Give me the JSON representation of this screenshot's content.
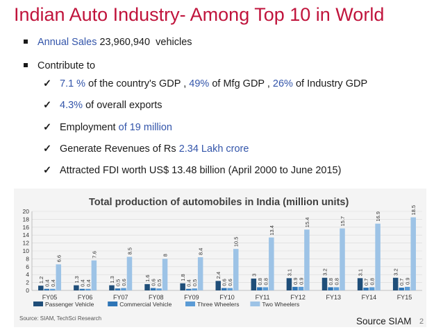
{
  "slide": {
    "title": "Indian Auto Industry- Among Top 10 in World",
    "bullets": {
      "b1": {
        "label": "Annual Sales",
        "value": "23,960,940",
        "unit": "vehicles"
      },
      "b2": {
        "text": "Contribute to"
      }
    },
    "checks": {
      "c1": {
        "v1": "7.1 %",
        "t1": "of the country's GDP ,",
        "v2": "49%",
        "t2": "of Mfg  GDP ,",
        "v3": "26%",
        "t3": "of Industry GDP"
      },
      "c2": {
        "v1": "4.3%",
        "t1": "of overall exports"
      },
      "c3": {
        "t1": "Employment",
        "v1": "of  19 million"
      },
      "c4": {
        "t1": "Generate Revenues of Rs",
        "v1": "2.34 Lakh crore"
      },
      "c5": {
        "t1": "Attracted FDI worth US$ 13.48 billion (April 2000 to June 2015)"
      }
    },
    "source": "Source SIAM",
    "page_number": "2"
  },
  "chart_data": {
    "type": "bar",
    "title": "Total production of automobiles in India (million units)",
    "categories": [
      "FY05",
      "FY06",
      "FY07",
      "FY08",
      "FY09",
      "FY10",
      "FY11",
      "FY12",
      "FY13",
      "FY14",
      "FY15"
    ],
    "series": [
      {
        "name": "Passenger Vehicle",
        "color": "#1f4e79",
        "values": [
          1.2,
          1.3,
          1.3,
          1.6,
          1.8,
          2.4,
          3,
          3.1,
          3.2,
          3.1,
          3.2
        ],
        "labels": [
          "1.2",
          "1.3",
          "1.3",
          "1.6",
          "1.8",
          "2.4",
          "3",
          "3.1",
          "3.2",
          "3.1",
          "3.2"
        ]
      },
      {
        "name": "Commercial Vehicle",
        "color": "#2e75b6",
        "values": [
          0.4,
          0.4,
          0.5,
          0.6,
          0.4,
          0.6,
          0.8,
          0.9,
          0.8,
          0.7,
          0.7
        ],
        "labels": [
          "0.4",
          "0.4",
          "0.5",
          "0.6",
          "0.4",
          "0.6",
          "0.8",
          "0.9",
          "0.8",
          "0.7",
          "0.7"
        ]
      },
      {
        "name": "Three Wheelers",
        "color": "#5b9bd5",
        "values": [
          0.4,
          0.4,
          0.6,
          0.5,
          0.5,
          0.6,
          0.8,
          0.9,
          0.8,
          0.8,
          0.9
        ],
        "labels": [
          "0.4",
          "0.4",
          "0.6",
          "0.5",
          "0.5",
          "0.6",
          "0.8",
          "0.9",
          "0.8",
          "0.8",
          "0.9"
        ]
      },
      {
        "name": "Two Wheelers",
        "color": "#9dc3e6",
        "values": [
          6.6,
          7.6,
          8.5,
          8,
          8.4,
          10.5,
          13.4,
          15.4,
          15.7,
          16.9,
          18.5
        ],
        "labels": [
          "6.6",
          "7.6",
          "8.5",
          "8",
          "8.4",
          "10.5",
          "13.4",
          "15.4",
          "15.7",
          "16.9",
          "18.5"
        ]
      }
    ],
    "y_ticks": [
      "0",
      "2",
      "4",
      "6",
      "8",
      "10",
      "12",
      "14",
      "16",
      "18",
      "20"
    ],
    "ylim": [
      0,
      20
    ],
    "legend_position": "bottom",
    "note": "Source: SIAM, TechSci Research"
  }
}
